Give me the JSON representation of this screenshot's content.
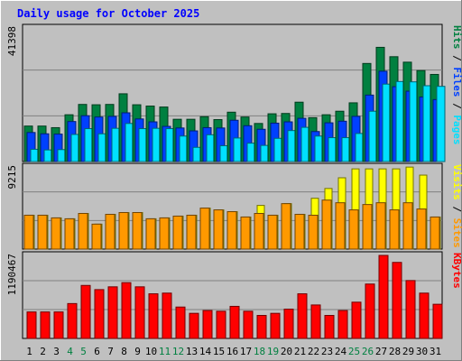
{
  "chart_data": {
    "type": "bar",
    "title": "Daily usage for October 2025",
    "categories": [
      "1",
      "2",
      "3",
      "4",
      "5",
      "6",
      "7",
      "8",
      "9",
      "10",
      "11",
      "12",
      "13",
      "14",
      "15",
      "16",
      "17",
      "18",
      "19",
      "20",
      "21",
      "22",
      "23",
      "24",
      "25",
      "26",
      "27",
      "28",
      "29",
      "30",
      "31"
    ],
    "weekend_days": [
      "4",
      "5",
      "11",
      "12",
      "18",
      "19",
      "25",
      "26"
    ],
    "panels": [
      {
        "name": "top",
        "ymax_label": "41398",
        "ymax": 41398,
        "side_label": [
          "Hits",
          "Files",
          "Pages"
        ],
        "series": [
          {
            "name": "Hits",
            "color": "#008040",
            "values": [
              11000,
              11000,
              10500,
              14500,
              17700,
              17600,
              17700,
              21000,
              17600,
              17200,
              16900,
              13100,
              13100,
              13900,
              13000,
              15300,
              13800,
              11800,
              14800,
              14900,
              18400,
              13600,
              14500,
              15600,
              18200,
              30400,
              35400,
              32500,
              30800,
              28200,
              27000
            ]
          },
          {
            "name": "Files",
            "color": "#0040ff",
            "values": [
              9000,
              8600,
              8500,
              12400,
              14200,
              13800,
              14000,
              15100,
              13200,
              12300,
              10900,
              10400,
              9500,
              10500,
              10400,
              12800,
              11100,
              10000,
              11900,
              12300,
              13400,
              9300,
              12000,
              12500,
              14000,
              20600,
              28000,
              23200,
              21800,
              20000,
              19200
            ]
          },
          {
            "name": "Pages",
            "color": "#00e0ff",
            "values": [
              3800,
              3600,
              3700,
              8400,
              10200,
              8600,
              10300,
              11800,
              10200,
              10300,
              10200,
              7900,
              4400,
              8300,
              4900,
              7300,
              5700,
              5000,
              7200,
              9600,
              10600,
              7900,
              7400,
              7400,
              8700,
              15600,
              24000,
              24800,
              24700,
              23500,
              23300
            ]
          }
        ]
      },
      {
        "name": "middle",
        "ymax_label": "9215",
        "ymax": 9215,
        "side_label": [
          "Visits",
          "Sites"
        ],
        "series": [
          {
            "name": "Visits",
            "color": "#ffff00",
            "values": [
              3800,
              3800,
              3500,
              3400,
              4000,
              2800,
              3900,
              4100,
              4100,
              3400,
              3500,
              3700,
              3800,
              4600,
              4400,
              4200,
              3600,
              4900,
              3800,
              5100,
              3900,
              5700,
              6800,
              8000,
              9000,
              9000,
              9000,
              9000,
              9200,
              8300,
              3600
            ]
          },
          {
            "name": "Sites",
            "color": "#ff9900",
            "values": [
              3800,
              3800,
              3500,
              3400,
              4000,
              2800,
              3900,
              4100,
              4100,
              3400,
              3500,
              3700,
              3800,
              4600,
              4400,
              4200,
              3600,
              4000,
              3800,
              5100,
              3900,
              3800,
              5500,
              5200,
              4400,
              5000,
              5200,
              4400,
              5200,
              4500,
              3600
            ]
          }
        ]
      },
      {
        "name": "bottom",
        "ymax_label": "1190467",
        "ymax": 1190467,
        "side_label": [
          "KBytes"
        ],
        "series": [
          {
            "name": "KBytes",
            "color": "#ff0000",
            "values": [
              380000,
              380000,
              380000,
              500000,
              760000,
              700000,
              740000,
              800000,
              740000,
              640000,
              650000,
              450000,
              360000,
              400000,
              390000,
              460000,
              390000,
              330000,
              360000,
              420000,
              640000,
              480000,
              330000,
              400000,
              520000,
              780000,
              1190467,
              1090000,
              830000,
              650000,
              490000
            ]
          }
        ]
      }
    ],
    "grid": true
  }
}
